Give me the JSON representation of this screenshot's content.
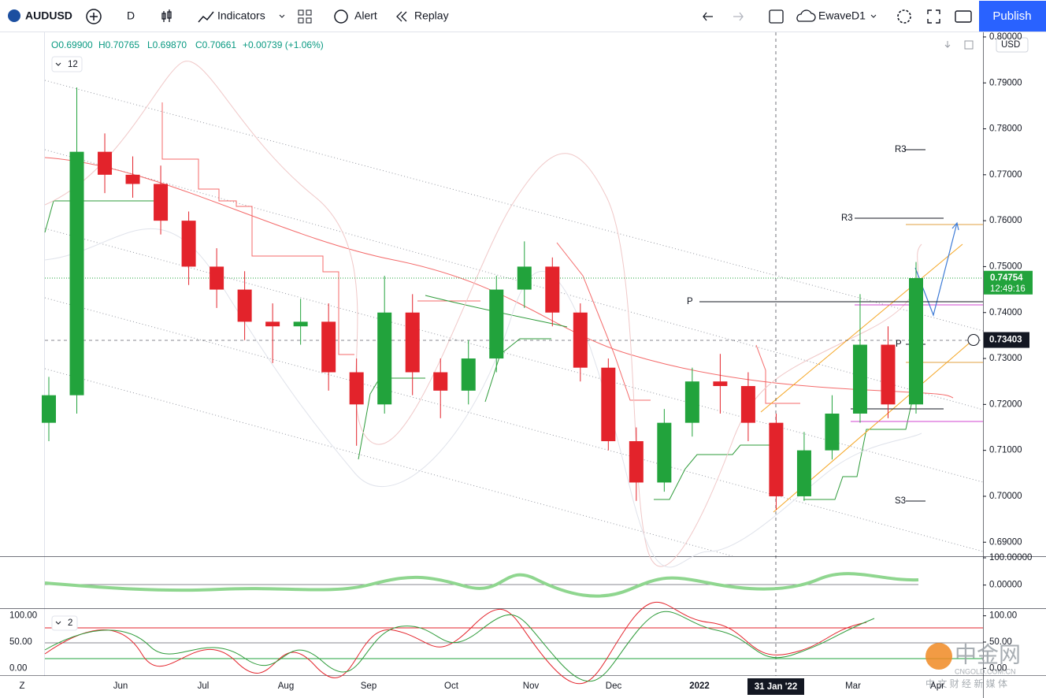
{
  "toolbar": {
    "symbol": "AUDUSD",
    "interval": "D",
    "indicators": "Indicators",
    "alert": "Alert",
    "replay": "Replay",
    "layout": "EwaveD1",
    "publish": "Publish"
  },
  "legend": {
    "ohlc": [
      "O0.69900",
      "H0.70765",
      "L0.69870",
      "C0.70661",
      "+0.00739 (+1.06%)"
    ],
    "indicator_count": "12"
  },
  "chart": {
    "type": "candlestick",
    "up_color": "#22a33c",
    "down_color": "#e3232b",
    "open": [
      0.716,
      0.722,
      0.775,
      0.77,
      0.768,
      0.76,
      0.75,
      0.745,
      0.738,
      0.737,
      0.738,
      0.727,
      0.72,
      0.74,
      0.727,
      0.723,
      0.73,
      0.745,
      0.75,
      0.74,
      0.728,
      0.712,
      0.703,
      0.716,
      0.725,
      0.724,
      0.716,
      0.7,
      0.71,
      0.718,
      0.733,
      0.72
    ],
    "high": [
      0.726,
      0.789,
      0.779,
      0.774,
      0.772,
      0.762,
      0.754,
      0.749,
      0.742,
      0.743,
      0.742,
      0.73,
      0.748,
      0.744,
      0.73,
      0.734,
      0.748,
      0.7555,
      0.752,
      0.742,
      0.73,
      0.715,
      0.719,
      0.728,
      0.731,
      0.727,
      0.718,
      0.714,
      0.722,
      0.744,
      0.737,
      0.751
    ],
    "low": [
      0.712,
      0.718,
      0.766,
      0.765,
      0.757,
      0.746,
      0.741,
      0.734,
      0.729,
      0.733,
      0.723,
      0.711,
      0.718,
      0.722,
      0.717,
      0.72,
      0.727,
      0.741,
      0.737,
      0.725,
      0.71,
      0.699,
      0.701,
      0.713,
      0.718,
      0.712,
      0.697,
      0.699,
      0.708,
      0.716,
      0.717,
      0.718
    ],
    "close": [
      0.722,
      0.775,
      0.77,
      0.768,
      0.76,
      0.75,
      0.745,
      0.738,
      0.737,
      0.738,
      0.727,
      0.72,
      0.74,
      0.727,
      0.723,
      0.73,
      0.745,
      0.75,
      0.74,
      0.728,
      0.712,
      0.703,
      0.716,
      0.725,
      0.724,
      0.716,
      0.7,
      0.71,
      0.718,
      0.733,
      0.72,
      0.7475
    ],
    "ylim": [
      0.6885,
      0.8005
    ],
    "yticks": [
      {
        "value": 0.8,
        "label": "0.80000"
      },
      {
        "value": 0.79,
        "label": "0.79000"
      },
      {
        "value": 0.78,
        "label": "0.78000"
      },
      {
        "value": 0.77,
        "label": "0.77000"
      },
      {
        "value": 0.76,
        "label": "0.76000"
      },
      {
        "value": 0.75,
        "label": "0.75000"
      },
      {
        "value": 0.74,
        "label": "0.74000"
      },
      {
        "value": 0.73,
        "label": "0.73000"
      },
      {
        "value": 0.72,
        "label": "0.72000"
      },
      {
        "value": 0.71,
        "label": "0.71000"
      },
      {
        "value": 0.7,
        "label": "0.70000"
      },
      {
        "value": 0.69,
        "label": "0.69000"
      }
    ],
    "currency": "USD",
    "last_price": 0.74754,
    "countdown": "12:49:16",
    "crosshair_price": 0.73403,
    "pivot_labels": [
      "R3",
      "R3",
      "P",
      "P",
      "S3"
    ],
    "x_labels": [
      "Jun",
      "Jul",
      "Aug",
      "Sep",
      "Oct",
      "Nov",
      "Dec",
      "2022",
      "Mar",
      "Apr"
    ],
    "crosshair_date": "31 Jan '22"
  },
  "pane1": {
    "ylim": [
      -82,
      103
    ],
    "yticks": [
      {
        "value": 100,
        "label": "100.00000"
      },
      {
        "value": 0,
        "label": "0.00000"
      }
    ]
  },
  "pane2": {
    "indicator_count": "2",
    "ylim": [
      -13,
      113
    ],
    "yticks": [
      {
        "value": 100,
        "label": "100.00"
      },
      {
        "value": 50,
        "label": "50.00"
      },
      {
        "value": 0,
        "label": "0.00"
      }
    ]
  },
  "footer": {
    "timezone": "Z"
  },
  "watermark": {
    "logo": "中金网",
    "site": "CNGOLD.COM.CN",
    "slogan": "中 文 财 经 新 媒 体"
  }
}
